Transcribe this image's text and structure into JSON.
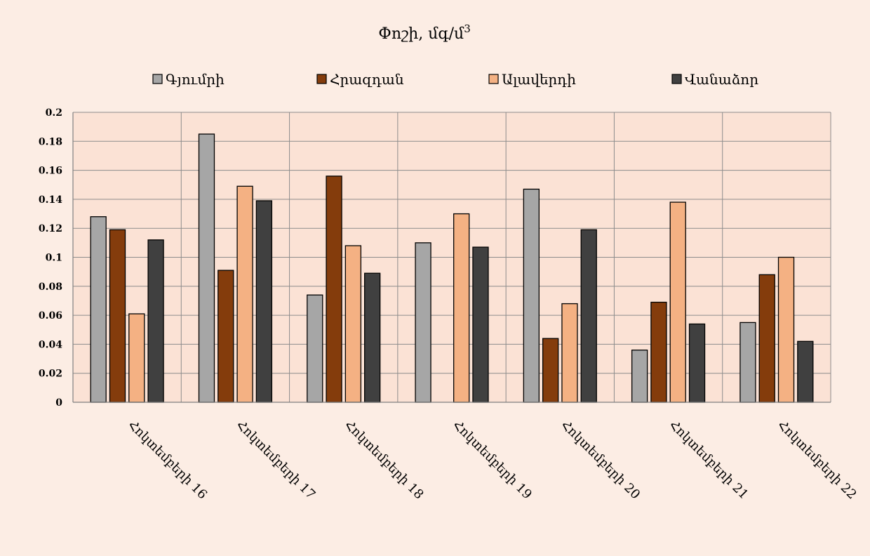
{
  "chart_data": {
    "type": "bar",
    "title": "Փոշի, մգ/մ",
    "title_superscript": "3",
    "categories": [
      "Հոկտեմբերի 16",
      "Հոկտեմբերի 17",
      "Հոկտեմբերի 18",
      "Հոկտեմբերի 19",
      "Հոկտեմբերի 20",
      "Հոկտեմբերի 21",
      "Հոկտեմբերի 22"
    ],
    "series": [
      {
        "name": "Գյումրի",
        "color": "#a6a6a6",
        "values": [
          0.128,
          0.185,
          0.074,
          0.11,
          0.147,
          0.036,
          0.055
        ]
      },
      {
        "name": "Հրազդան",
        "color": "#843c0c",
        "values": [
          0.119,
          0.091,
          0.156,
          0,
          0.044,
          0.069,
          0.088
        ]
      },
      {
        "name": "Ալավերդի",
        "color": "#f4b183",
        "values": [
          0.061,
          0.149,
          0.108,
          0.13,
          0.068,
          0.138,
          0.1
        ]
      },
      {
        "name": "Վանաձոր",
        "color": "#404040",
        "values": [
          0.112,
          0.139,
          0.089,
          0.107,
          0.119,
          0.054,
          0.042
        ]
      }
    ],
    "ylim": [
      0,
      0.2
    ],
    "yticks": [
      "0",
      "0.02",
      "0.04",
      "0.06",
      "0.08",
      "0.1",
      "0.12",
      "0.14",
      "0.16",
      "0.18",
      "0.2"
    ],
    "legend_position": "top",
    "grid": true,
    "plot_background": "#fbe2d5",
    "page_background": "#fcede4"
  }
}
